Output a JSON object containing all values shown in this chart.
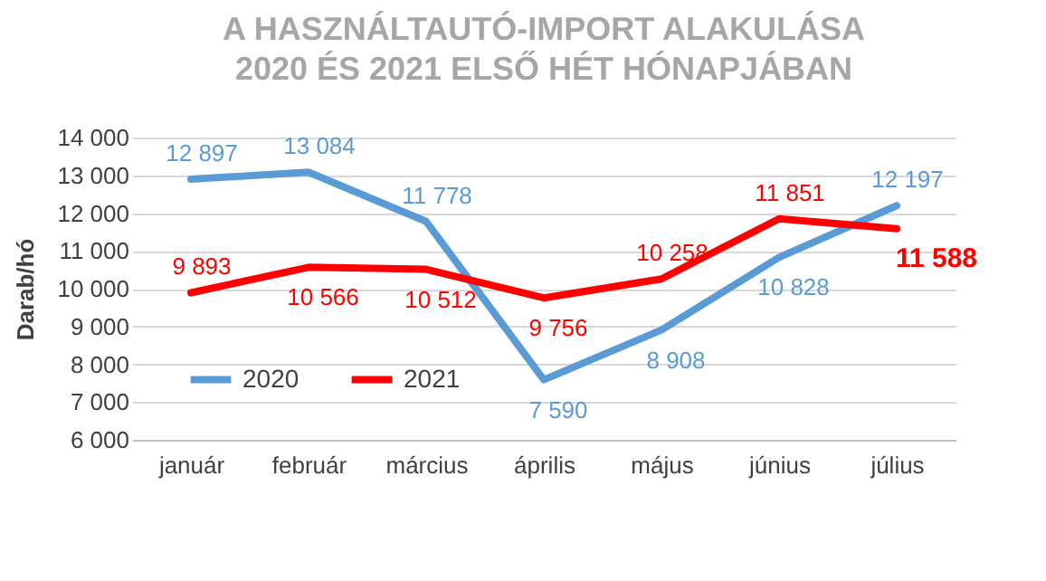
{
  "chart_data": {
    "type": "line",
    "title": "A HASZNÁLTAUTÓ-IMPORT ALAKULÁSA\n2020 ÉS 2021 ELSŐ HÉT HÓNAPJÁBAN",
    "ylabel": "Darab/hó",
    "categories": [
      "január",
      "február",
      "március",
      "április",
      "május",
      "június",
      "július"
    ],
    "series": [
      {
        "name": "2020",
        "color": "#5b9bd5",
        "values": [
          12897,
          13084,
          11778,
          7590,
          8908,
          10828,
          12197
        ],
        "value_labels": [
          "12 897",
          "13 084",
          "11 778",
          "7 590",
          "8 908",
          "10 828",
          "12 197"
        ]
      },
      {
        "name": "2021",
        "color": "#ff0000",
        "values": [
          9893,
          10566,
          10512,
          9756,
          10258,
          11851,
          11588
        ],
        "value_labels": [
          "9 893",
          "10 566",
          "10 512",
          "9 756",
          "10 258",
          "11 851",
          "11 588"
        ]
      }
    ],
    "ylim": [
      6000,
      14000
    ],
    "yticks": [
      {
        "value": 6000,
        "label": "6 000"
      },
      {
        "value": 7000,
        "label": "7 000"
      },
      {
        "value": 8000,
        "label": "8 000"
      },
      {
        "value": 9000,
        "label": "9 000"
      },
      {
        "value": 10000,
        "label": "10 000"
      },
      {
        "value": 11000,
        "label": "11 000"
      },
      {
        "value": 12000,
        "label": "12 000"
      },
      {
        "value": 13000,
        "label": "13 000"
      },
      {
        "value": 14000,
        "label": "14 000"
      }
    ],
    "grid": "y",
    "legend": "bottom left",
    "marker": "none",
    "line_style": "solid"
  }
}
